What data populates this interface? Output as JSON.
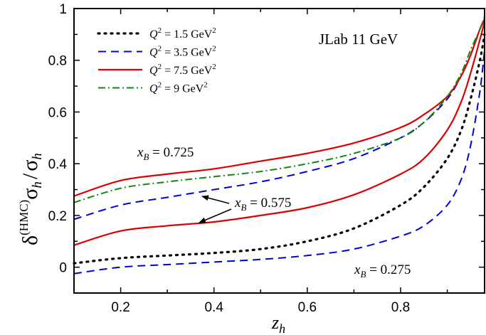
{
  "chart_data": {
    "type": "line",
    "title": "",
    "annotation_title": "JLab 11 GeV",
    "xlabel": {
      "base": "z",
      "sub": "h"
    },
    "ylabel": {
      "delta": "δ",
      "sup": "(HMC)",
      "num": "σ",
      "num_sub": "h",
      "slash": "/",
      "den": "σ",
      "den_sub": "h"
    },
    "xlim": [
      0.1,
      0.98
    ],
    "ylim": [
      -0.1,
      1.0
    ],
    "x_ticks": [
      0.2,
      0.4,
      0.6,
      0.8
    ],
    "y_ticks": [
      0,
      0.2,
      0.4,
      0.6,
      0.8,
      1
    ],
    "x_tick_labels": [
      "0.2",
      "0.4",
      "0.6",
      "0.8"
    ],
    "y_tick_labels": [
      "0",
      "0.2",
      "0.4",
      "0.6",
      "0.8",
      "1"
    ],
    "grid": false,
    "legend_position": "top-left",
    "legend": [
      {
        "id": "q15",
        "label_var": "Q",
        "label_sup": "2",
        "label_rest": " = 1.5 GeV",
        "label_unit_sup": "2",
        "color": "#000000",
        "dash": "2,7",
        "width": 3.2
      },
      {
        "id": "q35",
        "label_var": "Q",
        "label_sup": "2",
        "label_rest": " = 3.5 GeV",
        "label_unit_sup": "2",
        "color": "#0000dd",
        "dash": "11,7",
        "width": 2
      },
      {
        "id": "q75",
        "label_var": "Q",
        "label_sup": "2",
        "label_rest": " = 7.5 GeV",
        "label_unit_sup": "2",
        "color": "#dd0000",
        "dash": "",
        "width": 2.2
      },
      {
        "id": "q9",
        "label_var": "Q",
        "label_sup": "2",
        "label_rest": " = 9 GeV",
        "label_unit_sup": "2",
        "color": "#118811",
        "dash": "10,4,2,4",
        "width": 2
      }
    ],
    "annotations": [
      {
        "id": "xb725",
        "var": "x",
        "sub": "B",
        "text": " = 0.725"
      },
      {
        "id": "xb575",
        "var": "x",
        "sub": "B",
        "text": " = 0.575"
      },
      {
        "id": "xb275",
        "var": "x",
        "sub": "B",
        "text": " = 0.275"
      }
    ],
    "series": [
      {
        "style": "q15",
        "group": "xB=0.275",
        "x": [
          0.1,
          0.2,
          0.3,
          0.4,
          0.5,
          0.6,
          0.7,
          0.8,
          0.85,
          0.9,
          0.93,
          0.95,
          0.97,
          0.98
        ],
        "y": [
          0.015,
          0.035,
          0.045,
          0.055,
          0.07,
          0.1,
          0.15,
          0.24,
          0.31,
          0.42,
          0.53,
          0.65,
          0.8,
          0.9
        ]
      },
      {
        "style": "q35",
        "group": "xB=0.275",
        "x": [
          0.1,
          0.2,
          0.3,
          0.4,
          0.5,
          0.6,
          0.7,
          0.8,
          0.85,
          0.9,
          0.93,
          0.95,
          0.97,
          0.98
        ],
        "y": [
          -0.025,
          0.0,
          0.01,
          0.02,
          0.03,
          0.045,
          0.07,
          0.12,
          0.16,
          0.24,
          0.34,
          0.47,
          0.68,
          0.84
        ]
      },
      {
        "style": "q75",
        "group": "xB=0.575",
        "x": [
          0.1,
          0.2,
          0.3,
          0.4,
          0.5,
          0.6,
          0.7,
          0.8,
          0.85,
          0.9,
          0.93,
          0.95,
          0.97,
          0.98
        ],
        "y": [
          0.085,
          0.14,
          0.16,
          0.175,
          0.2,
          0.23,
          0.28,
          0.36,
          0.42,
          0.53,
          0.64,
          0.75,
          0.88,
          0.95
        ]
      },
      {
        "style": "q35",
        "group": "xB=0.575",
        "x": [
          0.1,
          0.2,
          0.3,
          0.4,
          0.5,
          0.6,
          0.7,
          0.8,
          0.85,
          0.9,
          0.93,
          0.95,
          0.97,
          0.98
        ],
        "y": [
          0.185,
          0.24,
          0.27,
          0.3,
          0.33,
          0.37,
          0.42,
          0.5,
          0.56,
          0.65,
          0.74,
          0.82,
          0.92,
          0.96
        ]
      },
      {
        "style": "q75",
        "group": "xB=0.725",
        "x": [
          0.1,
          0.2,
          0.3,
          0.4,
          0.5,
          0.6,
          0.7,
          0.8,
          0.85,
          0.9,
          0.93,
          0.95,
          0.97,
          0.98
        ],
        "y": [
          0.275,
          0.335,
          0.36,
          0.38,
          0.41,
          0.44,
          0.48,
          0.54,
          0.59,
          0.66,
          0.74,
          0.82,
          0.92,
          0.96
        ]
      },
      {
        "style": "q9",
        "group": "xB=0.725",
        "x": [
          0.1,
          0.2,
          0.3,
          0.4,
          0.5,
          0.6,
          0.7,
          0.8,
          0.85,
          0.9,
          0.93,
          0.95,
          0.97,
          0.98
        ],
        "y": [
          0.25,
          0.305,
          0.33,
          0.35,
          0.37,
          0.4,
          0.44,
          0.5,
          0.56,
          0.66,
          0.75,
          0.84,
          0.92,
          0.97
        ]
      }
    ]
  }
}
